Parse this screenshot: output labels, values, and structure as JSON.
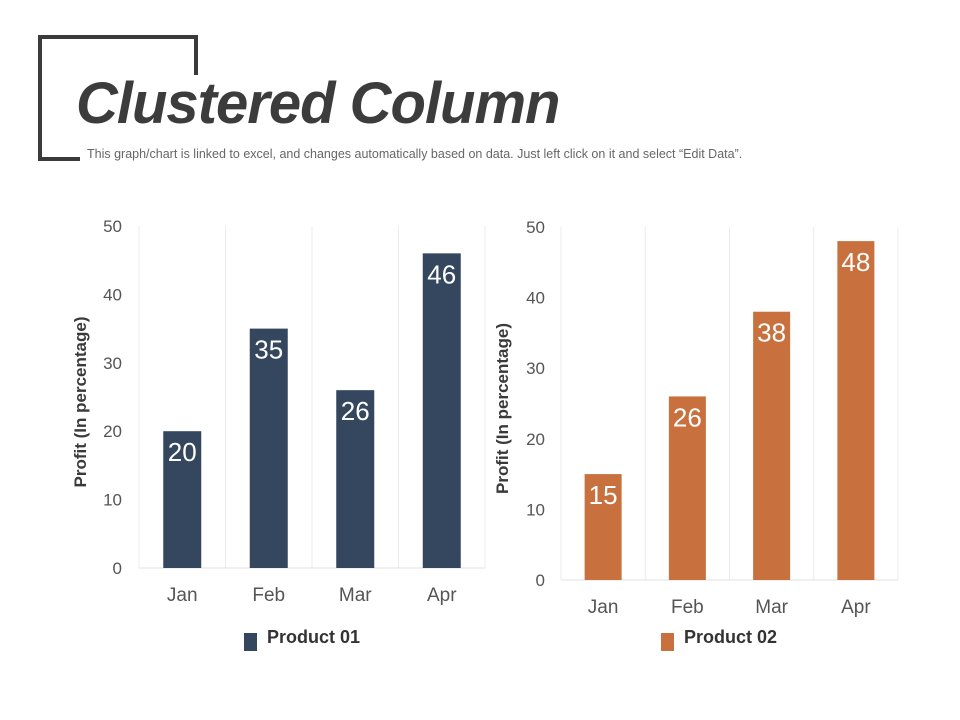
{
  "header": {
    "title": "Clustered Column",
    "subtitle": "This graph/chart is linked to excel, and changes automatically based on data. Just left click on it and select “Edit Data”."
  },
  "chart_data": [
    {
      "type": "bar",
      "categories": [
        "Jan",
        "Feb",
        "Mar",
        "Apr"
      ],
      "series": [
        {
          "name": "Product 01",
          "values": [
            20,
            35,
            26,
            46
          ],
          "color": "#35475f"
        }
      ],
      "ylabel": "Profit  (In percentage)",
      "xlabel": "",
      "ylim": [
        0,
        50
      ],
      "yticks": [
        0,
        10,
        20,
        30,
        40,
        50
      ],
      "grid": "vertical",
      "legend": "bottom",
      "data_labels": true
    },
    {
      "type": "bar",
      "categories": [
        "Jan",
        "Feb",
        "Mar",
        "Apr"
      ],
      "series": [
        {
          "name": "Product 02",
          "values": [
            15,
            26,
            38,
            48
          ],
          "color": "#c8703e"
        }
      ],
      "ylabel": "Profit  (In percentage)",
      "xlabel": "",
      "ylim": [
        0,
        50
      ],
      "yticks": [
        0,
        10,
        20,
        30,
        40,
        50
      ],
      "grid": "vertical",
      "legend": "bottom",
      "data_labels": true
    }
  ]
}
